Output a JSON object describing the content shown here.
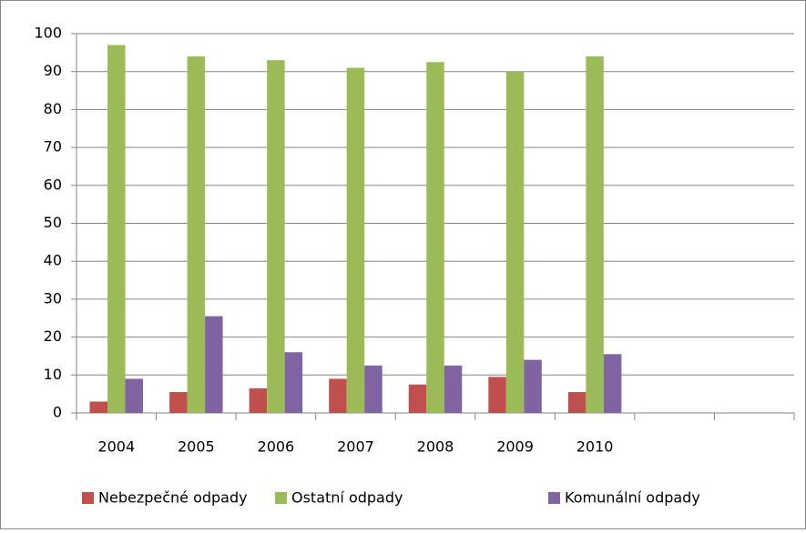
{
  "chart_data": {
    "type": "bar",
    "categories": [
      "2004",
      "2005",
      "2006",
      "2007",
      "2008",
      "2009",
      "2010",
      null,
      null
    ],
    "series": [
      {
        "name": "Nebezpečné odpady",
        "color": "#c0504d",
        "values": [
          3,
          5.5,
          6.5,
          9,
          7.5,
          9.5,
          5.5,
          null,
          null
        ]
      },
      {
        "name": "Ostatní odpady",
        "color": "#9bbb59",
        "values": [
          97,
          94,
          93,
          91,
          92.5,
          90,
          94,
          null,
          null
        ]
      },
      {
        "name": "Komunální odpady",
        "color": "#8064a2",
        "values": [
          9,
          25.5,
          16,
          12.5,
          12.5,
          14,
          15.5,
          null,
          null
        ]
      }
    ],
    "ylim": [
      0,
      100
    ],
    "yticks": [
      0,
      10,
      20,
      30,
      40,
      50,
      60,
      70,
      80,
      90,
      100
    ],
    "grid": true,
    "legend": "bottom"
  }
}
